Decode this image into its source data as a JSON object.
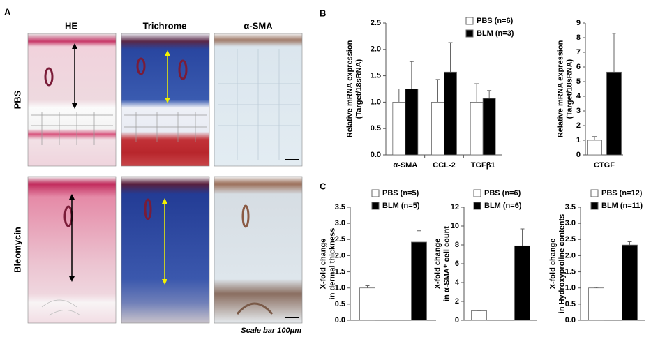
{
  "panel_labels": [
    "A",
    "B",
    "C"
  ],
  "panel_a": {
    "columns": [
      "HE",
      "Trichrome",
      "α-SMA"
    ],
    "rows": [
      "PBS",
      "Bleomycin"
    ],
    "scale_bar": "Scale bar 100μm"
  },
  "chart_data": [
    {
      "type": "bar",
      "ylabel": [
        "Relative mRNA expression",
        "(Target/18sRNA)"
      ],
      "categories": [
        "α-SMA",
        "CCL-2",
        "TGFβ1"
      ],
      "series": [
        {
          "name": "PBS (n=6)",
          "color": "#ffffff",
          "values": [
            1.0,
            1.0,
            1.0
          ],
          "errors": [
            0.25,
            0.43,
            0.35
          ]
        },
        {
          "name": "BLM (n=3)",
          "color": "#000000",
          "values": [
            1.25,
            1.57,
            1.07
          ],
          "errors": [
            0.52,
            0.56,
            0.15
          ]
        }
      ],
      "ylim": [
        0,
        2.5
      ],
      "yticks": [
        {
          "value": 0,
          "label": "0.0"
        },
        0.5,
        {
          "value": 1,
          "label": "1.0"
        },
        1.5,
        {
          "value": 2,
          "label": "2.0"
        },
        2.5
      ]
    },
    {
      "type": "bar",
      "ylabel": [
        "Relative mRNA expression",
        "(Target/18sRNA)"
      ],
      "categories": [
        "CTGF"
      ],
      "series": [
        {
          "color": "#ffffff",
          "values": [
            1.0
          ],
          "errors": [
            0.25
          ]
        },
        {
          "color": "#000000",
          "values": [
            5.65
          ],
          "errors": [
            2.65
          ]
        }
      ],
      "ylim": [
        0,
        9
      ],
      "yticks": [
        0,
        1,
        2,
        3,
        4,
        5,
        6,
        7,
        8,
        9
      ]
    },
    {
      "type": "bar",
      "ylabel": [
        "X-fold change",
        "in dermal thickness"
      ],
      "categories": [
        null
      ],
      "series": [
        {
          "name": "PBS (n=5)",
          "color": "#ffffff",
          "values": [
            1.0
          ],
          "errors": [
            0.07
          ]
        },
        {
          "name": "BLM (n=5)",
          "color": "#000000",
          "values": [
            2.42
          ],
          "errors": [
            0.35
          ]
        }
      ],
      "ylim": [
        0,
        3.5
      ],
      "yticks": [
        {
          "value": 0,
          "label": "0.0"
        },
        0.5,
        {
          "value": 1,
          "label": "1.0"
        },
        1.5,
        {
          "value": 2,
          "label": "2.0"
        },
        2.5,
        {
          "value": 3,
          "label": "3.0"
        },
        3.5
      ]
    },
    {
      "type": "bar",
      "ylabel": [
        "X-fold change",
        "in α-SMA⁺ cell count"
      ],
      "categories": [
        null
      ],
      "series": [
        {
          "name": "PBS (n=6)",
          "color": "#ffffff",
          "values": [
            1.0
          ],
          "errors": [
            0.05
          ]
        },
        {
          "name": "BLM (n=6)",
          "color": "#000000",
          "values": [
            7.9
          ],
          "errors": [
            1.8
          ]
        }
      ],
      "ylim": [
        0,
        12
      ],
      "yticks": [
        0,
        2,
        4,
        6,
        8,
        10,
        12
      ]
    },
    {
      "type": "bar",
      "ylabel": [
        "X-fold change",
        "in Hydroxyproline contents"
      ],
      "categories": [
        null
      ],
      "series": [
        {
          "name": "PBS (n=12)",
          "color": "#ffffff",
          "values": [
            1.0
          ],
          "errors": [
            0.02
          ]
        },
        {
          "name": "BLM (n=11)",
          "color": "#000000",
          "values": [
            2.33
          ],
          "errors": [
            0.1
          ]
        }
      ],
      "ylim": [
        0,
        3.5
      ],
      "yticks": [
        {
          "value": 0,
          "label": "0.0"
        },
        0.5,
        {
          "value": 1,
          "label": "1.0"
        },
        1.5,
        {
          "value": 2,
          "label": "2.0"
        },
        2.5,
        {
          "value": 3,
          "label": "3.0"
        },
        3.5
      ]
    }
  ]
}
